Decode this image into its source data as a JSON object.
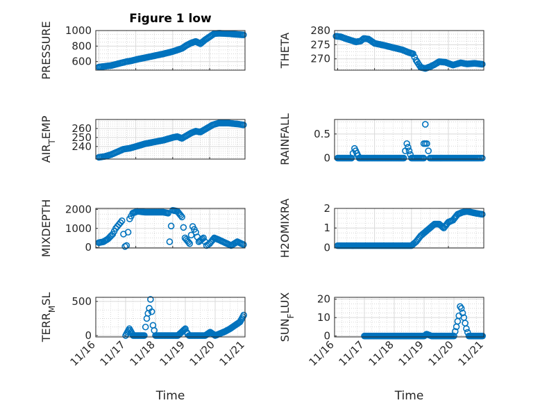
{
  "figure": {
    "title": "Figure 1 low",
    "marker_color": "#0072BD",
    "grid": true,
    "minor_grid": true
  },
  "chart_data": [
    {
      "type": "scatter",
      "id": "pressure",
      "title": "Figure 1 low",
      "ylabel": "PRESSURE",
      "ylabel_parts": [
        {
          "t": "PRESSURE",
          "sub": false
        }
      ],
      "xlabel": "",
      "xlim": [
        "11/16 22:00",
        "11/20 23:00"
      ],
      "ylim": [
        490,
        1000
      ],
      "yticks": [
        600,
        800,
        1000
      ],
      "show_xticklabels": false,
      "x": [
        "11/17 00:00",
        "11/17 04:00",
        "11/17 08:00",
        "11/17 12:00",
        "11/17 16:00",
        "11/17 18:00",
        "11/17 21:00",
        "11/18 01:00",
        "11/18 06:00",
        "11/18 12:00",
        "11/18 18:00",
        "11/19 00:00",
        "11/19 03:00",
        "11/19 06:00",
        "11/19 09:00",
        "11/19 12:00",
        "11/19 15:00",
        "11/19 18:00",
        "11/19 21:00",
        "11/20 00:00",
        "11/20 03:00",
        "11/20 06:00",
        "11/20 12:00",
        "11/20 18:00",
        "11/20 22:00"
      ],
      "y": [
        530,
        540,
        550,
        570,
        590,
        600,
        610,
        630,
        650,
        675,
        700,
        730,
        750,
        770,
        810,
        840,
        860,
        830,
        880,
        920,
        960,
        965,
        960,
        950,
        945
      ]
    },
    {
      "type": "scatter",
      "id": "theta",
      "ylabel": "THETA",
      "ylabel_parts": [
        {
          "t": "THETA",
          "sub": false
        }
      ],
      "xlabel": "",
      "xlim": [
        "11/16 22:00",
        "11/20 23:00"
      ],
      "ylim": [
        266,
        280
      ],
      "yticks": [
        270,
        275,
        280
      ],
      "show_xticklabels": false,
      "x": [
        "11/16 23:00",
        "11/17 02:00",
        "11/17 06:00",
        "11/17 09:00",
        "11/17 12:00",
        "11/17 15:00",
        "11/17 17:00",
        "11/17 20:00",
        "11/18 00:00",
        "11/18 06:00",
        "11/18 12:00",
        "11/18 18:00",
        "11/18 22:00",
        "11/19 01:00",
        "11/19 03:00",
        "11/19 06:00",
        "11/19 09:00",
        "11/19 12:00",
        "11/19 15:00",
        "11/19 18:00",
        "11/19 22:00",
        "11/20 03:00",
        "11/20 08:00",
        "11/20 12:00",
        "11/20 17:00",
        "11/20 22:00"
      ],
      "y": [
        278,
        277.8,
        277,
        276.5,
        276,
        276.3,
        277.2,
        277,
        275.5,
        274.8,
        274,
        273.2,
        272.3,
        271.8,
        269.5,
        267,
        266.6,
        267.2,
        268,
        269,
        268.8,
        267.8,
        268.6,
        268.2,
        268.4,
        268.1
      ]
    },
    {
      "type": "scatter",
      "id": "air_temp",
      "ylabel": "AIR_TEMP",
      "ylabel_parts": [
        {
          "t": "AIR",
          "sub": false
        },
        {
          "t": "T",
          "sub": true
        },
        {
          "t": "EMP",
          "sub": false
        }
      ],
      "xlabel": "",
      "xlim": [
        "11/16 22:00",
        "11/20 23:00"
      ],
      "ylim": [
        226,
        270
      ],
      "yticks": [
        240,
        250,
        260
      ],
      "show_xticklabels": false,
      "x": [
        "11/17 00:00",
        "11/17 04:00",
        "11/17 08:00",
        "11/17 12:00",
        "11/17 16:00",
        "11/17 20:00",
        "11/18 00:00",
        "11/18 06:00",
        "11/18 12:00",
        "11/18 18:00",
        "11/19 00:00",
        "11/19 03:00",
        "11/19 06:00",
        "11/19 09:00",
        "11/19 12:00",
        "11/19 15:00",
        "11/19 18:00",
        "11/19 22:00",
        "11/20 02:00",
        "11/20 06:00",
        "11/20 12:00",
        "11/20 18:00",
        "11/20 22:00"
      ],
      "y": [
        228,
        229,
        231,
        234,
        237,
        238,
        240,
        243,
        245,
        247,
        250,
        251,
        249,
        252,
        255,
        257,
        256,
        260,
        264,
        266,
        266,
        265,
        264
      ]
    },
    {
      "type": "scatter",
      "id": "rainfall",
      "ylabel": "RAINFALL",
      "ylabel_parts": [
        {
          "t": "RAINFALL",
          "sub": false
        }
      ],
      "xlabel": "",
      "xlim": [
        "11/16 22:00",
        "11/20 23:00"
      ],
      "ylim": [
        -0.02,
        0.8
      ],
      "yticks": [
        0,
        0.5
      ],
      "show_xticklabels": false,
      "x": [
        "11/17 00:00",
        "11/17 03:00",
        "11/17 06:00",
        "11/17 09:00",
        "11/17 11:00",
        "11/17 14:00",
        "11/17 17:00",
        "11/17 20:00",
        "11/18 00:00",
        "11/18 04:00",
        "11/18 08:00",
        "11/18 12:00",
        "11/18 16:00",
        "11/18 19:00",
        "11/18 21:00",
        "11/19 00:00",
        "11/19 04:00",
        "11/19 08:00",
        "11/19 09:00",
        "11/19 12:00",
        "11/19 16:00",
        "11/19 20:00",
        "11/20 00:00",
        "11/20 04:00",
        "11/20 08:00",
        "11/20 12:00",
        "11/20 16:00",
        "11/20 20:00",
        "11/20 22:00",
        "11/19 08:00",
        "11/19 09:00",
        "11/19 10:00"
      ],
      "y": [
        0,
        0,
        0,
        0,
        0.2,
        0,
        0,
        0,
        0,
        0,
        0,
        0,
        0,
        0,
        0.3,
        0,
        0,
        0,
        0.7,
        0,
        0,
        0,
        0,
        0,
        0,
        0,
        0,
        0,
        0,
        0.3,
        0.3,
        0.3
      ]
    },
    {
      "type": "scatter",
      "id": "mixdepth",
      "ylabel": "MIXDEPTH",
      "ylabel_parts": [
        {
          "t": "MIXDEPTH",
          "sub": false
        }
      ],
      "xlabel": "",
      "xlim": [
        "11/16 22:00",
        "11/20 23:00"
      ],
      "ylim": [
        -30,
        2050
      ],
      "yticks": [
        0,
        1000,
        2000
      ],
      "show_xticklabels": false,
      "x": [
        "11/17 00:00",
        "11/17 03:00",
        "11/17 06:00",
        "11/17 09:00",
        "11/17 11:00",
        "11/17 13:00",
        "11/17 15:00",
        "11/17 16:00",
        "11/17 17:00",
        "11/17 18:00",
        "11/17 20:00",
        "11/17 22:00",
        "11/18 01:00",
        "11/18 06:00",
        "11/18 12:00",
        "11/18 18:00",
        "11/18 21:00",
        "11/18 22:00",
        "11/19 00:00",
        "11/19 03:00",
        "11/19 06:00",
        "11/19 08:00",
        "11/19 11:00",
        "11/19 13:00",
        "11/19 15:00",
        "11/19 17:00",
        "11/19 20:00",
        "11/19 22:00",
        "11/20 00:00",
        "11/20 03:00",
        "11/20 06:00",
        "11/20 10:00",
        "11/20 14:00",
        "11/20 18:00",
        "11/20 22:00"
      ],
      "y": [
        250,
        300,
        450,
        700,
        1000,
        1200,
        1400,
        700,
        50,
        100,
        1500,
        1800,
        1900,
        1850,
        1850,
        1850,
        1800,
        300,
        1950,
        1900,
        1600,
        500,
        200,
        1100,
        800,
        300,
        500,
        100,
        200,
        500,
        400,
        250,
        100,
        300,
        150
      ]
    },
    {
      "type": "scatter",
      "id": "h2omixra",
      "ylabel": "H2OMIXRA",
      "ylabel_parts": [
        {
          "t": "H2OMIXRA",
          "sub": false
        }
      ],
      "xlabel": "",
      "xlim": [
        "11/16 22:00",
        "11/20 23:00"
      ],
      "ylim": [
        -0.02,
        2
      ],
      "yticks": [
        0,
        1,
        2
      ],
      "show_xticklabels": false,
      "x": [
        "11/17 00:00",
        "11/17 06:00",
        "11/17 12:00",
        "11/17 18:00",
        "11/18 00:00",
        "11/18 06:00",
        "11/18 12:00",
        "11/18 18:00",
        "11/19 00:00",
        "11/19 03:00",
        "11/19 06:00",
        "11/19 09:00",
        "11/19 12:00",
        "11/19 15:00",
        "11/19 18:00",
        "11/19 21:00",
        "11/20 00:00",
        "11/20 03:00",
        "11/20 06:00",
        "11/20 09:00",
        "11/20 12:00",
        "11/20 15:00",
        "11/20 18:00",
        "11/20 22:00"
      ],
      "y": [
        0.1,
        0.1,
        0.1,
        0.1,
        0.1,
        0.1,
        0.1,
        0.1,
        0.1,
        0.3,
        0.6,
        0.8,
        1.0,
        1.2,
        1.2,
        1.0,
        1.3,
        1.4,
        1.7,
        1.8,
        1.85,
        1.8,
        1.75,
        1.7
      ]
    },
    {
      "type": "scatter",
      "id": "terr_msl",
      "ylabel": "TERR_MSL",
      "ylabel_parts": [
        {
          "t": "TERR",
          "sub": false
        },
        {
          "t": "M",
          "sub": true
        },
        {
          "t": "SL",
          "sub": false
        }
      ],
      "xlabel": "Time",
      "xlim": [
        "11/16 00:00",
        "11/21 00:00"
      ],
      "ylim": [
        -20,
        560
      ],
      "yticks": [
        0,
        500
      ],
      "show_xticklabels": true,
      "xticks": [
        "11/16",
        "11/17",
        "11/18",
        "11/19",
        "11/20",
        "11/21"
      ],
      "x": [
        "11/17 00:00",
        "11/17 03:00",
        "11/17 06:00",
        "11/17 09:00",
        "11/17 12:00",
        "11/17 15:00",
        "11/17 17:00",
        "11/17 19:00",
        "11/17 20:00",
        "11/17 21:00",
        "11/17 22:00",
        "11/18 00:00",
        "11/18 03:00",
        "11/18 06:00",
        "11/18 12:00",
        "11/18 18:00",
        "11/19 00:00",
        "11/19 01:00",
        "11/19 03:00",
        "11/19 06:00",
        "11/19 12:00",
        "11/19 16:00",
        "11/19 20:00",
        "11/20 00:00",
        "11/20 04:00",
        "11/20 08:00",
        "11/20 12:00",
        "11/20 16:00",
        "11/20 20:00",
        "11/20 23:00"
      ],
      "y": [
        0,
        100,
        0,
        0,
        0,
        0,
        250,
        400,
        530,
        350,
        150,
        0,
        0,
        0,
        0,
        0,
        100,
        50,
        0,
        0,
        0,
        0,
        50,
        0,
        30,
        60,
        100,
        150,
        200,
        300
      ]
    },
    {
      "type": "scatter",
      "id": "sun_flux",
      "ylabel": "SUN_FLUX",
      "ylabel_parts": [
        {
          "t": "SUN",
          "sub": false
        },
        {
          "t": "F",
          "sub": true
        },
        {
          "t": "LUX",
          "sub": false
        }
      ],
      "xlabel": "Time",
      "xlim": [
        "11/16 00:00",
        "11/21 00:00"
      ],
      "ylim": [
        -0.5,
        21
      ],
      "yticks": [
        0,
        10,
        20
      ],
      "show_xticklabels": true,
      "xticks": [
        "11/16",
        "11/17",
        "11/18",
        "11/19",
        "11/20",
        "11/21"
      ],
      "x": [
        "11/17 00:00",
        "11/17 06:00",
        "11/17 12:00",
        "11/17 18:00",
        "11/18 00:00",
        "11/18 06:00",
        "11/18 12:00",
        "11/18 18:00",
        "11/19 00:00",
        "11/19 02:00",
        "11/19 06:00",
        "11/19 12:00",
        "11/19 18:00",
        "11/19 22:00",
        "11/20 00:00",
        "11/20 02:00",
        "11/20 04:00",
        "11/20 05:00",
        "11/20 06:00",
        "11/20 08:00",
        "11/20 10:00",
        "11/20 12:00",
        "11/20 16:00",
        "11/20 20:00",
        "11/20 23:00"
      ],
      "y": [
        0,
        0,
        0,
        0,
        0,
        0,
        0,
        0,
        0,
        1,
        0,
        0,
        0,
        0,
        0,
        5,
        11,
        16,
        15,
        10,
        4,
        0,
        0,
        0,
        0
      ]
    }
  ]
}
